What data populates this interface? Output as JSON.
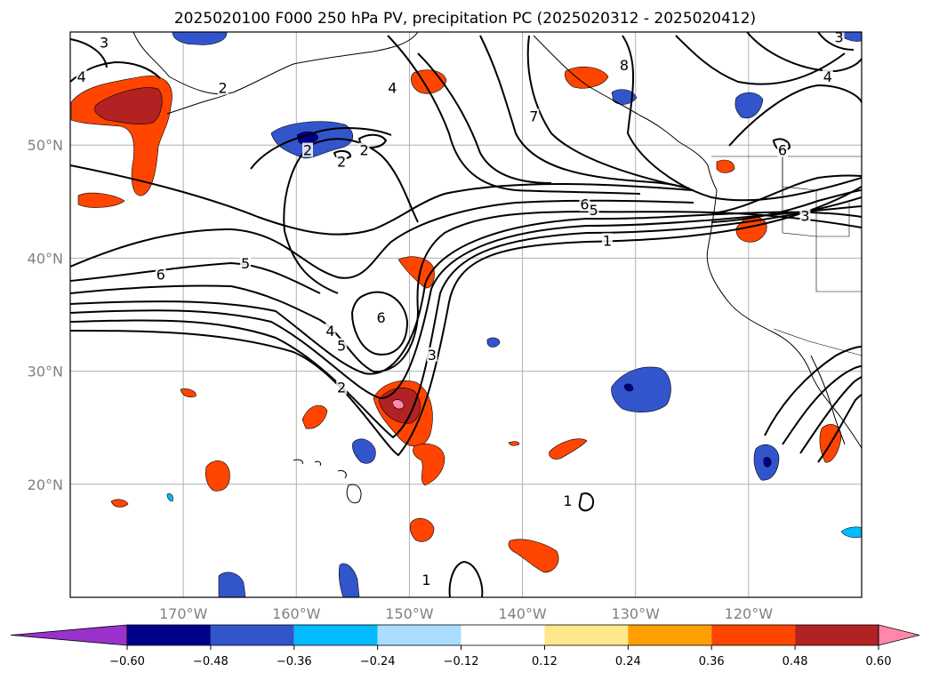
{
  "title": "2025020100 F000 250 hPa PV, precipitation PC (2025020312 - 2025020412)",
  "map": {
    "lon_range": [
      -180,
      -110
    ],
    "lat_range": [
      10,
      60
    ],
    "lon_ticks": [
      {
        "lon": -170,
        "label": "170°W"
      },
      {
        "lon": -160,
        "label": "160°W"
      },
      {
        "lon": -150,
        "label": "150°W"
      },
      {
        "lon": -140,
        "label": "140°W"
      },
      {
        "lon": -130,
        "label": "130°W"
      },
      {
        "lon": -120,
        "label": "120°W"
      }
    ],
    "lat_ticks": [
      {
        "lat": 20,
        "label": "20°N"
      },
      {
        "lat": 30,
        "label": "30°N"
      },
      {
        "lat": 40,
        "label": "40°N"
      },
      {
        "lat": 50,
        "label": "50°N"
      }
    ],
    "grid": true
  },
  "colorbar": {
    "ticks": [
      "−0.60",
      "−0.48",
      "−0.36",
      "−0.24",
      "−0.12",
      "0.12",
      "0.24",
      "0.36",
      "0.48",
      "0.60"
    ],
    "under_color": "#9932cc",
    "over_color": "#ff88aa",
    "colors": [
      "#00008b",
      "#3355cc",
      "#00bbff",
      "#aaddff",
      "#ffffff",
      "#ffe88a",
      "#ffa000",
      "#ff4500",
      "#b22222"
    ]
  },
  "contour_labels": [
    {
      "text": "3",
      "lon": -177,
      "lat": 59
    },
    {
      "text": "4",
      "lon": -179,
      "lat": 56
    },
    {
      "text": "2",
      "lon": -166.5,
      "lat": 55
    },
    {
      "text": "4",
      "lon": -151.5,
      "lat": 55
    },
    {
      "text": "2",
      "lon": -159,
      "lat": 49.5
    },
    {
      "text": "2",
      "lon": -156,
      "lat": 48.5
    },
    {
      "text": "2",
      "lon": -154,
      "lat": 49.5
    },
    {
      "text": "8",
      "lon": -131,
      "lat": 57
    },
    {
      "text": "7",
      "lon": -139,
      "lat": 52.5
    },
    {
      "text": "4",
      "lon": -113,
      "lat": 56
    },
    {
      "text": "3",
      "lon": -112,
      "lat": 59.5
    },
    {
      "text": "6",
      "lon": -117,
      "lat": 49.5
    },
    {
      "text": "6",
      "lon": -134.5,
      "lat": 44.7
    },
    {
      "text": "5",
      "lon": -133.7,
      "lat": 44.2
    },
    {
      "text": "1",
      "lon": -132.5,
      "lat": 41.5
    },
    {
      "text": "3",
      "lon": -115,
      "lat": 43.7
    },
    {
      "text": "5",
      "lon": -164.5,
      "lat": 39.5
    },
    {
      "text": "6",
      "lon": -172,
      "lat": 38.5
    },
    {
      "text": "6",
      "lon": -152.5,
      "lat": 34.7
    },
    {
      "text": "4",
      "lon": -157,
      "lat": 33.5
    },
    {
      "text": "5",
      "lon": -156,
      "lat": 32.2
    },
    {
      "text": "3",
      "lon": -148,
      "lat": 31.4
    },
    {
      "text": "2",
      "lon": -156,
      "lat": 28.5
    },
    {
      "text": "1",
      "lon": -148.5,
      "lat": 11.5
    },
    {
      "text": "1",
      "lon": -136,
      "lat": 18.5
    }
  ]
}
